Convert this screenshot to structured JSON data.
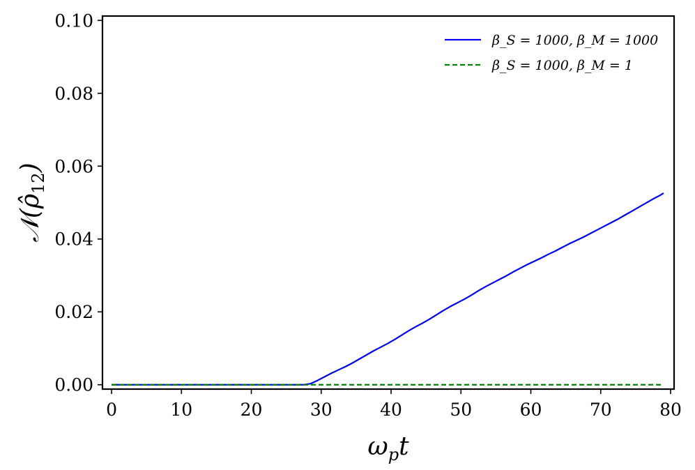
{
  "chart_data": {
    "type": "line",
    "title": "",
    "xlabel": "ω_p t",
    "ylabel": "𝒩(ρ̂₁₂)",
    "xlim": [
      -1.3,
      80.5
    ],
    "ylim": [
      -0.0012,
      0.1012
    ],
    "xticks": [
      0,
      10,
      20,
      30,
      40,
      50,
      60,
      70,
      80
    ],
    "xtick_labels": [
      "0",
      "10",
      "20",
      "30",
      "40",
      "50",
      "60",
      "70",
      "80"
    ],
    "yticks": [
      0.0,
      0.02,
      0.04,
      0.06,
      0.08,
      0.1
    ],
    "ytick_labels": [
      "0.00",
      "0.02",
      "0.04",
      "0.06",
      "0.08",
      "0.10"
    ],
    "grid": false,
    "legend_position": "top-right",
    "series": [
      {
        "name": "β_S = 1000, β_M = 1000",
        "color": "#0000ee",
        "style": "solid",
        "x": [
          0,
          10,
          20,
          27.5,
          28.5,
          29.5,
          30.5,
          31.5,
          32.5,
          33.5,
          34.5,
          35.5,
          36.5,
          37.5,
          38.5,
          39.5,
          40.5,
          41.5,
          42.5,
          43.5,
          44.5,
          45.5,
          46.5,
          47.5,
          48.5,
          49.5,
          50.5,
          51.5,
          52.5,
          53.5,
          54.5,
          55.5,
          56.5,
          57.5,
          58.5,
          59.5,
          60.5,
          61.5,
          62.5,
          63.5,
          64.5,
          65.5,
          66.5,
          67.5,
          68.5,
          69.5,
          70.5,
          71.5,
          72.5,
          73.5,
          74.5,
          75.5,
          76.5,
          77.5,
          78.5,
          79
        ],
        "y": [
          0.0,
          0.0,
          0.0,
          0.0,
          0.0003,
          0.0012,
          0.0022,
          0.0032,
          0.0041,
          0.005,
          0.006,
          0.0071,
          0.0082,
          0.0093,
          0.0103,
          0.0113,
          0.0124,
          0.0136,
          0.0148,
          0.0159,
          0.0169,
          0.018,
          0.0192,
          0.0204,
          0.0215,
          0.0225,
          0.0235,
          0.0246,
          0.0258,
          0.0269,
          0.0279,
          0.0289,
          0.0299,
          0.031,
          0.032,
          0.033,
          0.0339,
          0.0348,
          0.0358,
          0.0367,
          0.0377,
          0.0387,
          0.0396,
          0.0405,
          0.0415,
          0.0425,
          0.0435,
          0.0445,
          0.0455,
          0.0466,
          0.0477,
          0.0488,
          0.0499,
          0.051,
          0.052,
          0.0526
        ]
      },
      {
        "name": "β_S = 1000, β_M = 1",
        "color": "#008000",
        "style": "dashed",
        "x": [
          0,
          79
        ],
        "y": [
          0.0,
          0.0
        ]
      }
    ]
  }
}
